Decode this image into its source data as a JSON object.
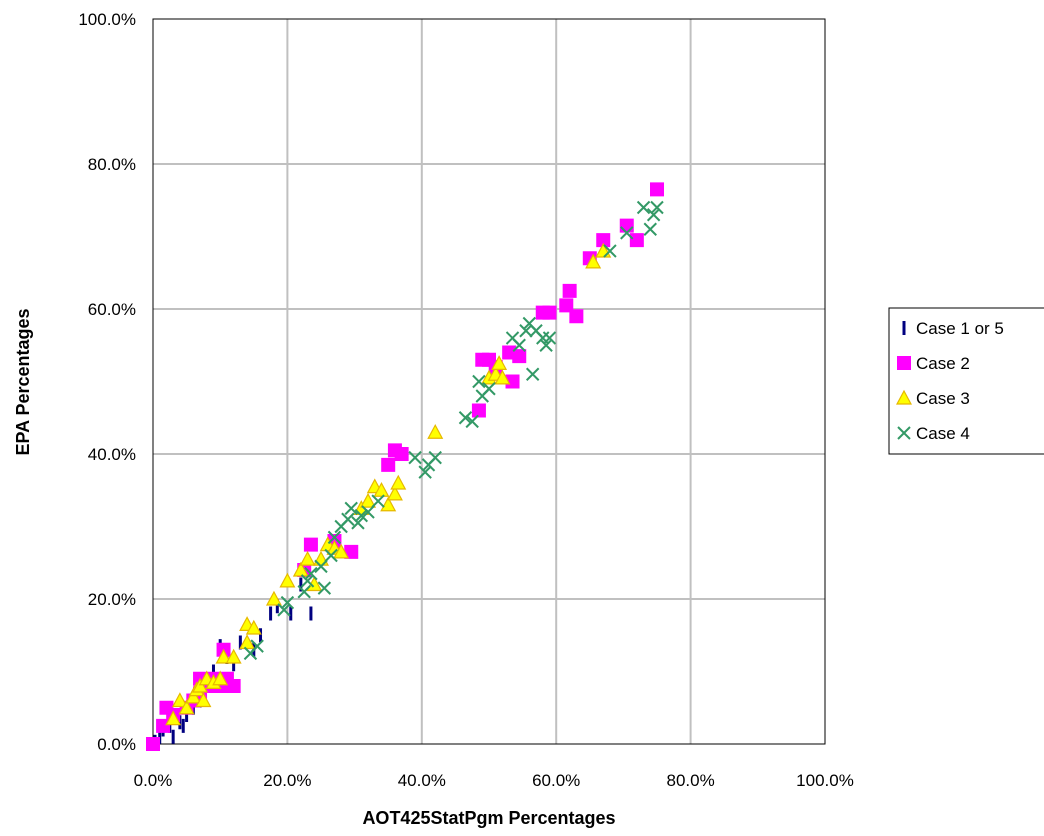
{
  "chart_data": {
    "type": "scatter",
    "title": "",
    "xlabel": "AOT425StatPgm Percentages",
    "ylabel": "EPA Percentages",
    "xlim": [
      0,
      100
    ],
    "ylim": [
      0,
      100
    ],
    "grid": true,
    "legend_position": "right",
    "x_ticks": [
      "0.0%",
      "20.0%",
      "40.0%",
      "60.0%",
      "80.0%",
      "100.0%"
    ],
    "y_ticks": [
      "0.0%",
      "20.0%",
      "40.0%",
      "60.0%",
      "80.0%",
      "100.0%"
    ],
    "series": [
      {
        "name": "Case 1 or 5",
        "marker": "dash",
        "color": "#000080",
        "points": [
          [
            0.3,
            0.3
          ],
          [
            1,
            1
          ],
          [
            1.5,
            2
          ],
          [
            2.5,
            2.5
          ],
          [
            3,
            1
          ],
          [
            4,
            3
          ],
          [
            4.5,
            2.5
          ],
          [
            5,
            4
          ],
          [
            6,
            5
          ],
          [
            7,
            6
          ],
          [
            8,
            8
          ],
          [
            9,
            10
          ],
          [
            10,
            13.5
          ],
          [
            11,
            12
          ],
          [
            12,
            11
          ],
          [
            13,
            14
          ],
          [
            15,
            13
          ],
          [
            16,
            15
          ],
          [
            17.5,
            18
          ],
          [
            18.5,
            19
          ],
          [
            20.5,
            18
          ],
          [
            22,
            22
          ],
          [
            23.5,
            18
          ]
        ]
      },
      {
        "name": "Case 2",
        "marker": "square",
        "color": "#ff00ff",
        "points": [
          [
            0,
            0
          ],
          [
            1.5,
            2.5
          ],
          [
            2,
            5
          ],
          [
            3,
            4
          ],
          [
            5,
            5
          ],
          [
            6,
            6
          ],
          [
            7,
            7
          ],
          [
            7,
            9
          ],
          [
            8,
            8
          ],
          [
            9,
            9
          ],
          [
            10,
            8
          ],
          [
            10.5,
            13
          ],
          [
            11,
            9
          ],
          [
            12,
            8
          ],
          [
            22.5,
            24
          ],
          [
            23.5,
            27.5
          ],
          [
            27,
            28
          ],
          [
            29.5,
            26.5
          ],
          [
            35,
            38.5
          ],
          [
            36,
            40.5
          ],
          [
            37,
            40
          ],
          [
            48.5,
            46
          ],
          [
            49,
            53
          ],
          [
            50,
            53
          ],
          [
            51,
            52
          ],
          [
            53,
            54
          ],
          [
            53.5,
            50
          ],
          [
            54.5,
            53.5
          ],
          [
            58,
            59.5
          ],
          [
            59,
            59.5
          ],
          [
            61.5,
            60.5
          ],
          [
            62,
            62.5
          ],
          [
            63,
            59
          ],
          [
            65,
            67
          ],
          [
            67,
            69.5
          ],
          [
            70.5,
            71.5
          ],
          [
            72,
            69.5
          ],
          [
            75,
            76.5
          ]
        ]
      },
      {
        "name": "Case 3",
        "marker": "triangle",
        "color": "#ffff00",
        "points": [
          [
            3,
            3.5
          ],
          [
            4,
            6
          ],
          [
            5,
            5
          ],
          [
            6,
            6.5
          ],
          [
            6.5,
            7.5
          ],
          [
            7,
            8
          ],
          [
            7.5,
            6
          ],
          [
            8,
            9
          ],
          [
            9,
            8.5
          ],
          [
            10,
            9
          ],
          [
            10.5,
            12
          ],
          [
            12,
            12
          ],
          [
            14,
            16.5
          ],
          [
            15,
            16
          ],
          [
            14,
            14
          ],
          [
            18,
            20
          ],
          [
            20,
            22.5
          ],
          [
            22,
            24
          ],
          [
            23,
            25.5
          ],
          [
            24,
            22
          ],
          [
            25,
            25.5
          ],
          [
            26,
            27.5
          ],
          [
            27,
            27
          ],
          [
            28,
            26.5
          ],
          [
            31,
            32.5
          ],
          [
            32,
            33.5
          ],
          [
            33,
            35.5
          ],
          [
            34,
            35
          ],
          [
            35,
            33
          ],
          [
            36,
            34.5
          ],
          [
            36.5,
            36
          ],
          [
            42,
            43
          ],
          [
            50,
            50.5
          ],
          [
            51,
            51
          ],
          [
            51.5,
            52.5
          ],
          [
            52,
            50.5
          ],
          [
            65.5,
            66.5
          ],
          [
            67,
            68
          ]
        ]
      },
      {
        "name": "Case 4",
        "marker": "x",
        "color": "#339966",
        "points": [
          [
            14.5,
            12.5
          ],
          [
            15.5,
            13.5
          ],
          [
            19.5,
            18.5
          ],
          [
            20,
            19.5
          ],
          [
            22.5,
            21
          ],
          [
            23,
            22.5
          ],
          [
            23.5,
            23.5
          ],
          [
            25,
            24.5
          ],
          [
            25.5,
            21.5
          ],
          [
            26.5,
            26
          ],
          [
            27,
            28.5
          ],
          [
            28,
            30
          ],
          [
            29,
            31
          ],
          [
            29.5,
            32.5
          ],
          [
            30.5,
            30.5
          ],
          [
            31,
            31.5
          ],
          [
            32,
            32
          ],
          [
            33.5,
            33.5
          ],
          [
            39,
            39.5
          ],
          [
            40.5,
            37.5
          ],
          [
            41,
            38.5
          ],
          [
            42,
            39.5
          ],
          [
            46.5,
            45
          ],
          [
            47.5,
            44.5
          ],
          [
            48.5,
            50
          ],
          [
            49,
            48
          ],
          [
            50,
            49
          ],
          [
            53.5,
            56
          ],
          [
            54.5,
            55
          ],
          [
            55.5,
            57
          ],
          [
            56,
            58
          ],
          [
            56.5,
            51
          ],
          [
            57,
            57
          ],
          [
            58,
            56
          ],
          [
            58.5,
            55
          ],
          [
            59,
            56
          ],
          [
            68,
            68
          ],
          [
            70.5,
            70.5
          ],
          [
            73,
            74
          ],
          [
            74,
            71
          ],
          [
            74.5,
            73
          ],
          [
            75,
            74
          ]
        ]
      }
    ]
  }
}
